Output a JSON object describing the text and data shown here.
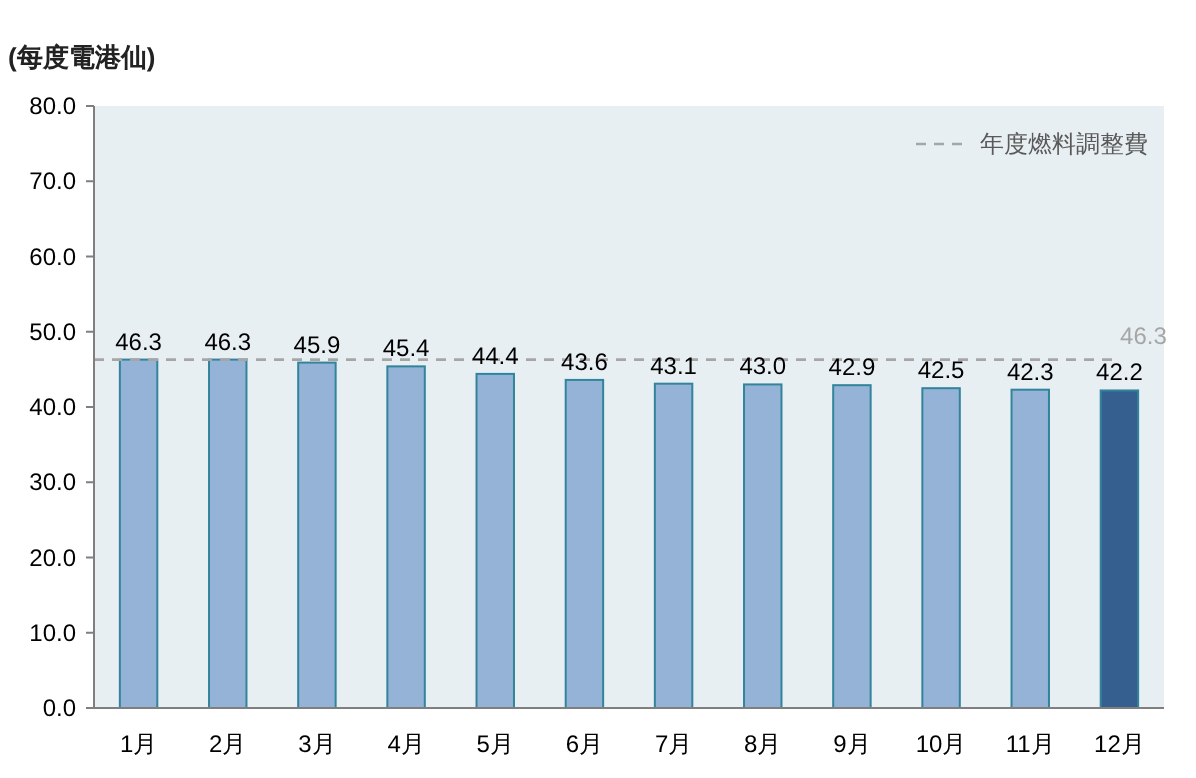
{
  "chart_data": {
    "type": "bar",
    "ylabel": "(每度電港仙)",
    "categories": [
      "1月",
      "2月",
      "3月",
      "4月",
      "5月",
      "6月",
      "7月",
      "8月",
      "9月",
      "10月",
      "11月",
      "12月"
    ],
    "values": [
      46.3,
      46.3,
      45.9,
      45.4,
      44.4,
      43.6,
      43.1,
      43.0,
      42.9,
      42.5,
      42.3,
      42.2
    ],
    "value_labels": [
      "46.3",
      "46.3",
      "45.9",
      "45.4",
      "44.4",
      "43.6",
      "43.1",
      "43.0",
      "42.9",
      "42.5",
      "42.3",
      "42.2"
    ],
    "colors": [
      "#95b3d7",
      "#95b3d7",
      "#95b3d7",
      "#95b3d7",
      "#95b3d7",
      "#95b3d7",
      "#95b3d7",
      "#95b3d7",
      "#95b3d7",
      "#95b3d7",
      "#95b3d7",
      "#355f8f"
    ],
    "ylim": [
      0,
      80
    ],
    "yticks": [
      {
        "value": 0,
        "label": "0.0"
      },
      {
        "value": 10,
        "label": "10.0"
      },
      {
        "value": 20,
        "label": "20.0"
      },
      {
        "value": 30,
        "label": "30.0"
      },
      {
        "value": 40,
        "label": "40.0"
      },
      {
        "value": 50,
        "label": "50.0"
      },
      {
        "value": 60,
        "label": "60.0"
      },
      {
        "value": 70,
        "label": "70.0"
      },
      {
        "value": 80,
        "label": "80.0"
      }
    ],
    "ref_lines": [
      {
        "axis": "y",
        "value": 46.3,
        "label": "年度燃料調整費",
        "color": "#a6a6a6",
        "line_style": "dashed"
      }
    ],
    "annotations": [
      {
        "text": "46.3",
        "x": "12月",
        "y": 46.3
      }
    ],
    "legend": "top right"
  }
}
